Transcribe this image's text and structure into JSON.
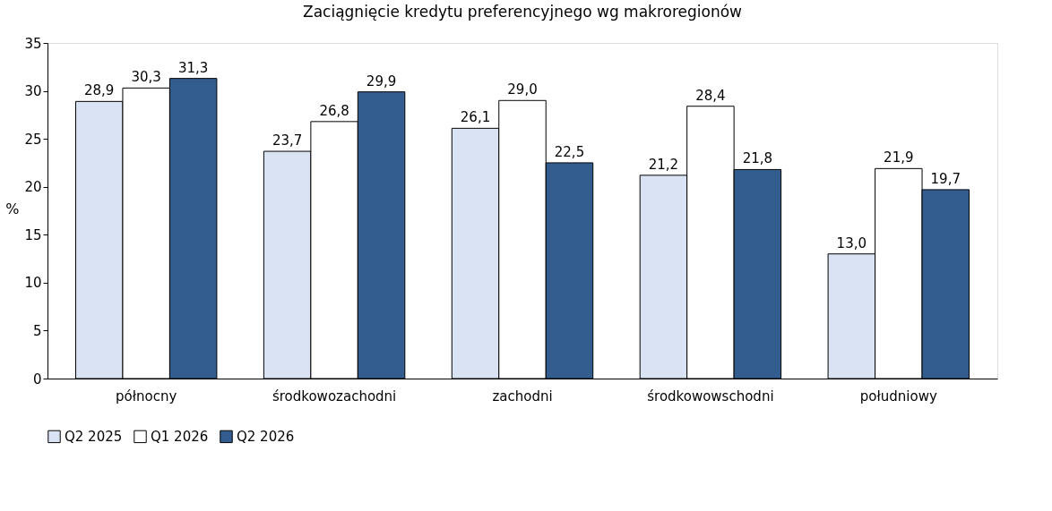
{
  "chart_data": {
    "type": "bar",
    "title": "Zaciągnięcie kredytu preferencyjnego wg makroregionów",
    "ylabel": "%",
    "categories": [
      "północny",
      "środkowozachodni",
      "zachodni",
      "środkowowschodni",
      "południowy"
    ],
    "series": [
      {
        "name": "Q2 2025",
        "color": "#dae3f3",
        "values": [
          28.9,
          23.7,
          26.1,
          21.2,
          13.0
        ],
        "value_labels": [
          "28,9",
          "23,7",
          "26,1",
          "21,2",
          "13,0"
        ]
      },
      {
        "name": "Q1 2026",
        "color": "#ffffff",
        "values": [
          30.3,
          26.8,
          29.0,
          28.4,
          21.9
        ],
        "value_labels": [
          "30,3",
          "26,8",
          "29,0",
          "28,4",
          "21,9"
        ]
      },
      {
        "name": "Q2 2026",
        "color": "#335c8f",
        "values": [
          31.3,
          29.9,
          22.5,
          21.8,
          19.7
        ],
        "value_labels": [
          "31,3",
          "29,9",
          "22,5",
          "21,8",
          "19,7"
        ]
      }
    ],
    "ylim": [
      0,
      35
    ],
    "yticks": [
      0,
      5,
      10,
      15,
      20,
      25,
      30,
      35
    ],
    "grid": false,
    "legend": "bottom"
  }
}
